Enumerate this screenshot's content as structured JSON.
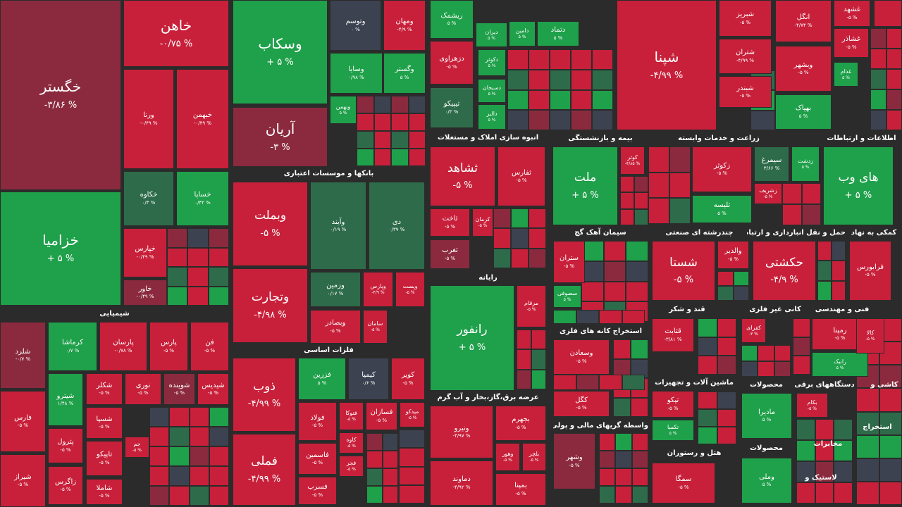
{
  "tiles": [
    {
      "name": "خگستر",
      "change": "-۳/۸۶ %",
      "color": "#8b2a3e"
    },
    {
      "name": "خزامیا",
      "change": "+ ۵ %",
      "color": "#1fa04a"
    },
    {
      "name": "خاهن",
      "change": "-۰/۷۵ %",
      "color": "#c8203a"
    },
    {
      "name": "ورنا",
      "change": "-۰/۴۹ %",
      "color": "#c8203a"
    },
    {
      "name": "خبهمن",
      "change": "-۰/۴۹ %",
      "color": "#c8203a"
    },
    {
      "name": "خکاوه",
      "change": "۰/۳ %",
      "color": "#2e6b4a"
    },
    {
      "name": "خساپا",
      "change": "۰/۴۲ %",
      "color": "#1fa04a"
    },
    {
      "name": "خپارس",
      "change": "-۰/۴۹ %",
      "color": "#c8203a"
    },
    {
      "name": "خاور",
      "change": "-۰/۴۹ %",
      "color": "#8b2a3e"
    },
    {
      "name": "شلرد",
      "change": "-۰/۷ %",
      "color": "#8b2a3e"
    },
    {
      "name": "کرماشا",
      "change": "۰/۷ %",
      "color": "#1fa04a"
    },
    {
      "name": "پارسان",
      "change": "-۰/۷۸ %",
      "color": "#c8203a"
    },
    {
      "name": "پارس",
      "change": "-۵ %",
      "color": "#c8203a"
    },
    {
      "name": "فن",
      "change": "-۵ %",
      "color": "#c8203a"
    },
    {
      "name": "شیترو",
      "change": "۱/۴۸ %",
      "color": "#1fa04a"
    },
    {
      "name": "فارس",
      "change": "-۵ %",
      "color": "#c8203a"
    },
    {
      "name": "شیراز",
      "change": "-۵ %",
      "color": "#c8203a"
    },
    {
      "name": "شکلر",
      "change": "-۵ %",
      "color": "#c8203a"
    },
    {
      "name": "نوری",
      "change": "-۵ %",
      "color": "#c8203a"
    },
    {
      "name": "شوینده",
      "change": "-۵ %",
      "color": "#8b2a3e"
    },
    {
      "name": "شیدیس",
      "change": "-۵ %",
      "color": "#c8203a"
    },
    {
      "name": "شسپا",
      "change": "-۵ %",
      "color": "#c8203a"
    },
    {
      "name": "پترول",
      "change": "-۵ %",
      "color": "#c8203a"
    },
    {
      "name": "تاپیکو",
      "change": "-۵ %",
      "color": "#c8203a"
    },
    {
      "name": "زاگرس",
      "change": "-۵ %",
      "color": "#c8203a"
    },
    {
      "name": "شاملا",
      "change": "-۵ %",
      "color": "#c8203a"
    },
    {
      "name": "جم",
      "change": "-۵ %",
      "color": "#c8203a"
    },
    {
      "name": "وسکاب",
      "change": "+ ۵ %",
      "color": "#1fa04a"
    },
    {
      "name": "وتوسم",
      "change": "۰ %",
      "color": "#3d4250"
    },
    {
      "name": "ومهان",
      "change": "-۴/۹ %",
      "color": "#c8203a"
    },
    {
      "name": "وسایا",
      "change": "۰/۹۸ %",
      "color": "#1fa04a"
    },
    {
      "name": "وگستر",
      "change": "۵ %",
      "color": "#1fa04a"
    },
    {
      "name": "آریان",
      "change": "-۳ %",
      "color": "#8b2a3e"
    },
    {
      "name": "وبهمن",
      "change": "۵ %",
      "color": "#1fa04a"
    },
    {
      "name": "وبملت",
      "change": "-۵ %",
      "color": "#c8203a"
    },
    {
      "name": "وتجارت",
      "change": "-۴/۹۸ %",
      "color": "#c8203a"
    },
    {
      "name": "وآیند",
      "change": "۰/۱۹ %",
      "color": "#2e6b4a"
    },
    {
      "name": "دی",
      "change": "۰/۳۹ %",
      "color": "#2e6b4a"
    },
    {
      "name": "وزمین",
      "change": "۰/۱۷ %",
      "color": "#2e6b4a"
    },
    {
      "name": "وپارس",
      "change": "-۴/۹ %",
      "color": "#c8203a"
    },
    {
      "name": "وپست",
      "change": "-۵ %",
      "color": "#c8203a"
    },
    {
      "name": "وبصادر",
      "change": "-۵ %",
      "color": "#c8203a"
    },
    {
      "name": "سامان",
      "change": "-۵ %",
      "color": "#c8203a"
    },
    {
      "name": "ذوب",
      "change": "-۴/۹۹ %",
      "color": "#c8203a"
    },
    {
      "name": "فملی",
      "change": "-۴/۹۹ %",
      "color": "#c8203a"
    },
    {
      "name": "فزرین",
      "change": "۵ %",
      "color": "#1fa04a"
    },
    {
      "name": "کیمیا",
      "change": "۰/۶ %",
      "color": "#3d4250"
    },
    {
      "name": "کویر",
      "change": "-۵ %",
      "color": "#c8203a"
    },
    {
      "name": "فولاد",
      "change": "-۵ %",
      "color": "#c8203a"
    },
    {
      "name": "فتوکا",
      "change": "-۵ %",
      "color": "#c8203a"
    },
    {
      "name": "فسازان",
      "change": "-۵ %",
      "color": "#c8203a"
    },
    {
      "name": "میدکو",
      "change": "-۵ %",
      "color": "#c8203a"
    },
    {
      "name": "فاسمین",
      "change": "-۵ %",
      "color": "#c8203a"
    },
    {
      "name": "فسرب",
      "change": "-۵ %",
      "color": "#c8203a"
    },
    {
      "name": "کاوه",
      "change": "-۵ %",
      "color": "#c8203a"
    },
    {
      "name": "فجر",
      "change": "-۵ %",
      "color": "#c8203a"
    },
    {
      "name": "ریشمک",
      "change": "۵ %",
      "color": "#1fa04a"
    },
    {
      "name": "دیران",
      "change": "۵ %",
      "color": "#1fa04a"
    },
    {
      "name": "دزهراوی",
      "change": "-۵ %",
      "color": "#c8203a"
    },
    {
      "name": "تیپیکو",
      "change": "۰/۳ %",
      "color": "#2e6b4a"
    },
    {
      "name": "دکوثر",
      "change": "۵ %",
      "color": "#1fa04a"
    },
    {
      "name": "دسبحان",
      "change": "۵ %",
      "color": "#1fa04a"
    },
    {
      "name": "دالبر",
      "change": "۵ %",
      "color": "#1fa04a"
    },
    {
      "name": "ثشاهد",
      "change": "-۵ %",
      "color": "#c8203a"
    },
    {
      "name": "ثفارس",
      "change": "-۵ %",
      "color": "#c8203a"
    },
    {
      "name": "ثاخت",
      "change": "-۵ %",
      "color": "#c8203a"
    },
    {
      "name": "کرمان",
      "change": "-۵ %",
      "color": "#c8203a"
    },
    {
      "name": "ثغرب",
      "change": "-۵ %",
      "color": "#8b2a3e"
    },
    {
      "name": "رانفور",
      "change": "+ ۵ %",
      "color": "#1fa04a"
    },
    {
      "name": "مرقام",
      "change": "-۵ %",
      "color": "#c8203a"
    },
    {
      "name": "ونیرو",
      "change": "-۴/۹۷ %",
      "color": "#c8203a"
    },
    {
      "name": "دماوند",
      "change": "-۴/۹۲ %",
      "color": "#c8203a"
    },
    {
      "name": "بجهرم",
      "change": "-۵ %",
      "color": "#c8203a"
    },
    {
      "name": "وهور",
      "change": "-۵ %",
      "color": "#c8203a"
    },
    {
      "name": "بلچر",
      "change": "-۵ %",
      "color": "#c8203a"
    },
    {
      "name": "بمپنا",
      "change": "-۵ %",
      "color": "#c8203a"
    },
    {
      "name": "دتماد",
      "change": "۵ %",
      "color": "#1fa04a"
    },
    {
      "name": "دامین",
      "change": "۵ %",
      "color": "#1fa04a"
    },
    {
      "name": "ملت",
      "change": "+ ۵ %",
      "color": "#1fa04a"
    },
    {
      "name": "کوثر",
      "change": "-۴/۸۵ %",
      "color": "#c8203a"
    },
    {
      "name": "ستران",
      "change": "-۵ %",
      "color": "#c8203a"
    },
    {
      "name": "سصوفی",
      "change": "۵ %",
      "color": "#1fa04a"
    },
    {
      "name": "وسعادن",
      "change": "-۵ %",
      "color": "#c8203a"
    },
    {
      "name": "کگل",
      "change": "-۵ %",
      "color": "#c8203a"
    },
    {
      "name": "وشهر",
      "change": "-۵ %",
      "color": "#8b2a3e"
    },
    {
      "name": "شپنا",
      "change": "-۴/۹۹ %",
      "color": "#c8203a"
    },
    {
      "name": "شبریز",
      "change": "-۵ %",
      "color": "#c8203a"
    },
    {
      "name": "شتران",
      "change": "-۴/۹۹ %",
      "color": "#c8203a"
    },
    {
      "name": "شبندر",
      "change": "-۵ %",
      "color": "#c8203a"
    },
    {
      "name": "زکوثر",
      "change": "-۵ %",
      "color": "#c8203a"
    },
    {
      "name": "ثلیسه",
      "change": "۵ %",
      "color": "#1fa04a"
    },
    {
      "name": "سیمرغ",
      "change": "۳/۶۶ %",
      "color": "#2e6b4a"
    },
    {
      "name": "زشریف",
      "change": "-۵ %",
      "color": "#c8203a"
    },
    {
      "name": "زدشت",
      "change": "۵ %",
      "color": "#1fa04a"
    },
    {
      "name": "شستا",
      "change": "-۵ %",
      "color": "#c8203a"
    },
    {
      "name": "والدیر",
      "change": "-۵ %",
      "color": "#c8203a"
    },
    {
      "name": "قثابت",
      "change": "-۳/۸۱ %",
      "color": "#c8203a"
    },
    {
      "name": "تپکو",
      "change": "-۵ %",
      "color": "#c8203a"
    },
    {
      "name": "تکمبا",
      "change": "۵ %",
      "color": "#1fa04a"
    },
    {
      "name": "سمگا",
      "change": "-۵ %",
      "color": "#c8203a"
    },
    {
      "name": "انگل",
      "change": "-۴/۷۴ %",
      "color": "#c8203a"
    },
    {
      "name": "وبشهر",
      "change": "-۵ %",
      "color": "#c8203a"
    },
    {
      "name": "بهپاک",
      "change": "۵ %",
      "color": "#1fa04a"
    },
    {
      "name": "غشهد",
      "change": "-۵ %",
      "color": "#c8203a"
    },
    {
      "name": "غشاذر",
      "change": "-۵ %",
      "color": "#c8203a"
    },
    {
      "name": "غدام",
      "change": "۵ %",
      "color": "#1fa04a"
    },
    {
      "name": "های وب",
      "change": "+ ۵ %",
      "color": "#1fa04a"
    },
    {
      "name": "حکشتی",
      "change": "-۴/۹ %",
      "color": "#c8203a"
    },
    {
      "name": "فرابورس",
      "change": "-۵ %",
      "color": "#c8203a"
    },
    {
      "name": "کفرای",
      "change": "-۳ %",
      "color": "#c8203a"
    },
    {
      "name": "رمپنا",
      "change": "-۵ %",
      "color": "#c8203a"
    },
    {
      "name": "رانیک",
      "change": "۵ %",
      "color": "#1fa04a"
    },
    {
      "name": "مادیرا",
      "change": "۵ %",
      "color": "#1fa04a"
    },
    {
      "name": "وملی",
      "change": "۵ %",
      "color": "#1fa04a"
    },
    {
      "name": "بکام",
      "change": "-۵ %",
      "color": "#c8203a"
    },
    {
      "name": "کالا",
      "change": "-۵ %",
      "color": "#c8203a"
    }
  ],
  "headers": [
    "شیمیایی",
    "بانکها و موسسات اعتباری",
    "فلزات اساسی",
    "انبوه سازی املاک و مستغلات",
    "رایانه",
    "عرضه برق،گاز،بخار و آب گرم",
    "بیمه و بازنشستگی",
    "سیمان آهک گچ",
    "استخراج کانه های فلزی",
    "واسطه گریهای مالی و پولی",
    "زراعت و خدمات وابسته",
    "چندرشته ای صنعتی",
    "قند و شکر",
    "ماشین آلات و تجهیزات",
    "هتل و رستوران",
    "اطلاعات و ارتباطات",
    "حمل و نقل انبارداری و ارتباطات",
    "کمکی به نهاد",
    "کانی غیر فلزی",
    "فنی و مهندسی",
    "محصولات",
    "محصولات",
    "دستگاههای برقی",
    "مخابرات",
    "لاستیک و",
    "کاشی و",
    "استخراج"
  ]
}
